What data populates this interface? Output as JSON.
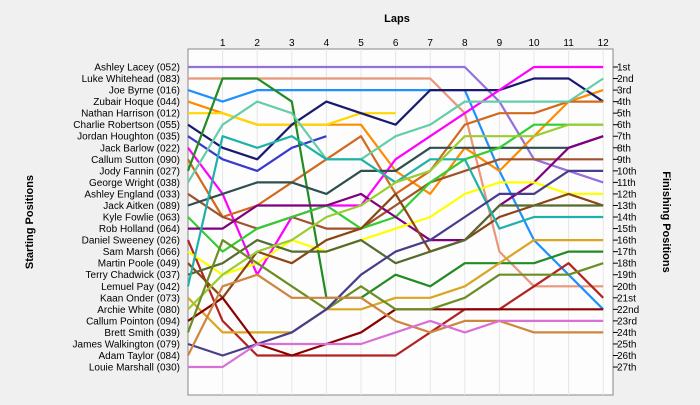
{
  "chart_data": {
    "type": "line",
    "title": "Laps",
    "xlabel": "Laps",
    "ylabel_left": "Starting Positions",
    "ylabel_right": "Finishing Positions",
    "laps": [
      1,
      2,
      3,
      4,
      5,
      6,
      7,
      8,
      9,
      10,
      11,
      12
    ],
    "start_labels": [
      "Ashley Lacey (052)",
      "Luke Whitehead (083)",
      "Joe Byrne (016)",
      "Zubair Hoque (044)",
      "Nathan Harrison (012)",
      "Charlie Robertson (055)",
      "Jordan Houghton (035)",
      "Jack Barlow (022)",
      "Callum Sutton (090)",
      "Jody Fannin (027)",
      "George Wright (038)",
      "Ashley England (033)",
      "Jack Aitken (089)",
      "Kyle Fowlie (063)",
      "Rob Holland (064)",
      "Daniel Sweeney (026)",
      "Sam Marsh (066)",
      "Martin Poole (049)",
      "Terry Chadwick (037)",
      "Lemuel Pay (042)",
      "Kaan Onder (073)",
      "Archie White (080)",
      "Callum Pointon (094)",
      "Brett Smith (039)",
      "James Walkington (079)",
      "Adam Taylor (084)",
      "Louie Marshall (030)"
    ],
    "finish_labels": [
      "1st",
      "2nd",
      "3rd",
      "4th",
      "5th",
      "6th",
      "7th",
      "8th",
      "9th",
      "10th",
      "11th",
      "12th",
      "13th",
      "14th",
      "15th",
      "16th",
      "17th",
      "18th",
      "19th",
      "20th",
      "21st",
      "22nd",
      "23rd",
      "24th",
      "25th",
      "26th",
      "27th"
    ],
    "series": [
      {
        "driver": "Ashley Lacey (052)",
        "color": "#9370db",
        "positions": [
          1,
          1,
          1,
          1,
          1,
          1,
          1,
          1,
          1,
          4,
          9,
          10,
          11
        ]
      },
      {
        "driver": "Luke Whitehead (083)",
        "color": "#e9967a",
        "positions": [
          2,
          2,
          2,
          2,
          2,
          2,
          2,
          2,
          5,
          17,
          20,
          20,
          20
        ]
      },
      {
        "driver": "Joe Byrne (016)",
        "color": "#1e90ff",
        "positions": [
          3,
          4,
          3,
          3,
          3,
          3,
          3,
          3,
          3,
          10,
          16,
          19,
          22
        ]
      },
      {
        "driver": "Zubair Hoque (044)",
        "color": "#ff8c00",
        "positions": [
          4,
          5,
          6,
          6,
          6,
          6,
          10,
          12,
          8,
          10,
          7,
          4,
          3
        ]
      },
      {
        "driver": "Nathan Harrison (012)",
        "color": "#ffd700",
        "positions": [
          5,
          5,
          6,
          6,
          6,
          5,
          5
        ]
      },
      {
        "driver": "Charlie Robertson (055)",
        "color": "#191970",
        "positions": [
          6,
          8,
          9,
          6,
          4,
          5,
          6,
          3,
          3,
          3,
          2,
          2,
          4
        ]
      },
      {
        "driver": "Jordan Houghton (035)",
        "color": "#3a3acd",
        "positions": [
          7,
          9,
          10,
          8,
          7
        ]
      },
      {
        "driver": "Jack Barlow (022)",
        "color": "#ff00ff",
        "positions": [
          8,
          12,
          19,
          14,
          13,
          13,
          9,
          7,
          5,
          3,
          1,
          1,
          1
        ]
      },
      {
        "driver": "Callum Sutton (090)",
        "color": "#d2691e",
        "positions": [
          9,
          14,
          13,
          11,
          9,
          7,
          12,
          10,
          6,
          5,
          5,
          4,
          4
        ]
      },
      {
        "driver": "Jody Fannin (027)",
        "color": "#228b22",
        "positions": [
          10,
          2,
          2,
          4,
          21,
          21,
          19,
          20,
          18,
          18,
          18,
          17,
          17
        ]
      },
      {
        "driver": "George Wright (038)",
        "color": "#66cdaa",
        "positions": [
          11,
          6,
          4,
          5,
          9,
          9,
          7,
          6,
          4,
          4,
          4,
          4,
          2
        ]
      },
      {
        "driver": "Ashley England (033)",
        "color": "#a0522d",
        "positions": [
          12,
          14,
          15,
          14,
          15,
          15,
          13,
          11,
          10,
          9,
          9,
          9,
          9
        ]
      },
      {
        "driver": "Jack Aitken (089)",
        "color": "#2f4f4f",
        "positions": [
          13,
          12,
          11,
          11,
          12,
          10,
          10,
          8,
          8,
          8,
          8,
          8,
          7
        ]
      },
      {
        "driver": "Kyle Fowlie (063)",
        "color": "#32cd32",
        "positions": [
          14,
          17,
          15,
          14,
          13,
          15,
          14,
          11,
          9,
          8,
          6,
          6,
          6
        ]
      },
      {
        "driver": "Rob Holland (064)",
        "color": "#800080",
        "positions": [
          15,
          15,
          13,
          13,
          13,
          12,
          14,
          16,
          16,
          13,
          11,
          8,
          7
        ]
      },
      {
        "driver": "Daniel Sweeney (026)",
        "color": "#b22222",
        "positions": [
          16,
          23,
          26,
          26,
          26,
          26,
          26,
          24,
          22,
          22,
          20,
          18,
          21
        ]
      },
      {
        "driver": "Sam Marsh (066)",
        "color": "#ffff00",
        "positions": [
          17,
          19,
          18,
          16,
          17,
          16,
          15,
          14,
          12,
          11,
          11,
          12,
          12
        ]
      },
      {
        "driver": "Martin Poole (049)",
        "color": "#8b4513",
        "positions": [
          18,
          21,
          17,
          18,
          16,
          15,
          12,
          17,
          16,
          14,
          13,
          12,
          13
        ]
      },
      {
        "driver": "Terry Chadwick (037)",
        "color": "#556b2f",
        "positions": [
          19,
          18,
          16,
          17,
          17,
          16,
          18,
          17,
          16,
          13,
          13,
          13,
          13
        ]
      },
      {
        "driver": "Lemuel Pay (042)",
        "color": "#20b2aa",
        "positions": [
          20,
          7,
          8,
          7,
          9,
          9,
          11,
          9,
          9,
          15,
          14,
          14,
          14
        ]
      },
      {
        "driver": "Kaan Onder (073)",
        "color": "#daa520",
        "positions": [
          21,
          24,
          24,
          24,
          22,
          22,
          21,
          21,
          20,
          18,
          16,
          16,
          16
        ]
      },
      {
        "driver": "Archie White (080)",
        "color": "#9acd32",
        "positions": [
          22,
          19,
          17,
          16,
          14,
          13,
          11,
          10,
          7,
          7,
          7,
          6,
          6
        ]
      },
      {
        "driver": "Callum Pointon (094)",
        "color": "#8b0000",
        "positions": [
          23,
          21,
          25,
          26,
          25,
          24,
          22,
          22,
          22,
          22,
          22,
          22,
          22
        ]
      },
      {
        "driver": "Brett Smith (039)",
        "color": "#6b8e23",
        "positions": [
          24,
          16,
          18,
          20,
          22,
          20,
          22,
          22,
          21,
          19,
          19,
          19,
          18
        ]
      },
      {
        "driver": "James Walkington (079)",
        "color": "#483d8b",
        "positions": [
          25,
          26,
          25,
          24,
          22,
          19,
          17,
          16,
          14,
          12,
          12,
          10,
          10
        ]
      },
      {
        "driver": "Adam Taylor (084)",
        "color": "#cd853f",
        "positions": [
          26,
          20,
          19,
          21,
          21,
          21,
          23,
          24,
          23,
          23,
          24,
          24,
          24
        ]
      },
      {
        "driver": "Louie Marshall (030)",
        "color": "#da70d6",
        "positions": [
          27,
          27,
          25,
          25,
          25,
          25,
          24,
          23,
          24,
          23,
          23,
          23,
          23
        ]
      }
    ]
  }
}
